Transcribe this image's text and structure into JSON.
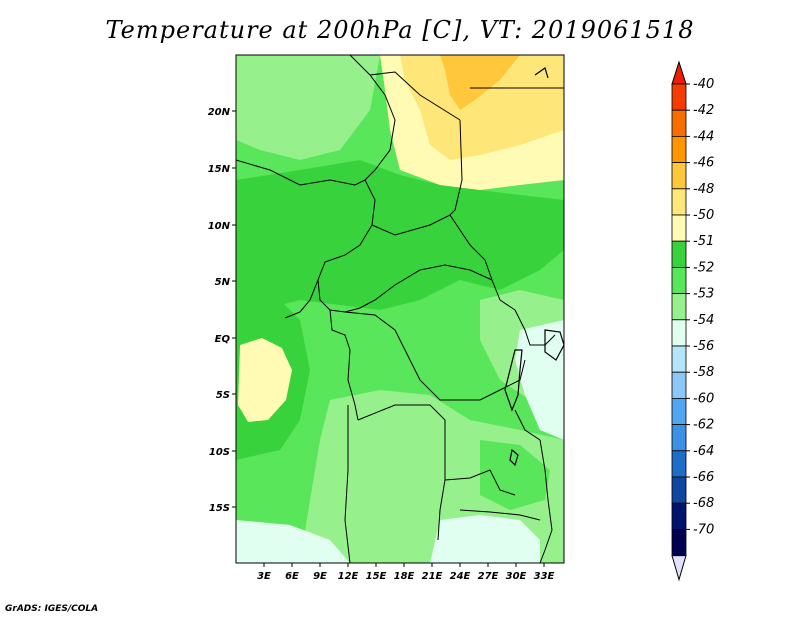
{
  "title": "Temperature at 200hPa [C], VT: 2019061518",
  "credit": "GrADS: IGES/COLA",
  "map": {
    "lon_labels": [
      "3E",
      "6E",
      "9E",
      "12E",
      "15E",
      "18E",
      "21E",
      "24E",
      "27E",
      "30E",
      "33E"
    ],
    "lat_labels": [
      "20N",
      "15N",
      "10N",
      "5N",
      "EQ",
      "5S",
      "10S",
      "15S"
    ]
  },
  "colorbar": {
    "labels": [
      "-40",
      "-42",
      "-44",
      "-46",
      "-48",
      "-50",
      "-51",
      "-52",
      "-53",
      "-54",
      "-56",
      "-58",
      "-60",
      "-62",
      "-64",
      "-66",
      "-68",
      "-70"
    ],
    "colors": [
      "#f01e00",
      "#f53c00",
      "#fa6e00",
      "#ff9600",
      "#ffc83c",
      "#ffe678",
      "#fffab4",
      "#37d23c",
      "#5ae65a",
      "#96f08c",
      "#e1fff0",
      "#b4e6fa",
      "#8cc8f5",
      "#50a5f0",
      "#3c91e6",
      "#1e6ec8",
      "#0f46a0",
      "#00146e",
      "#000050",
      "#e1e1fa"
    ]
  },
  "colors": {
    "green_dark": "#37d23c",
    "green": "#5ae65a",
    "green_light": "#96f08c",
    "green_pale": "#b4faaa",
    "cyan_pale": "#e1fff0",
    "yellow_pale": "#fffab4",
    "yellow": "#ffe678",
    "orange": "#ffc83c"
  }
}
